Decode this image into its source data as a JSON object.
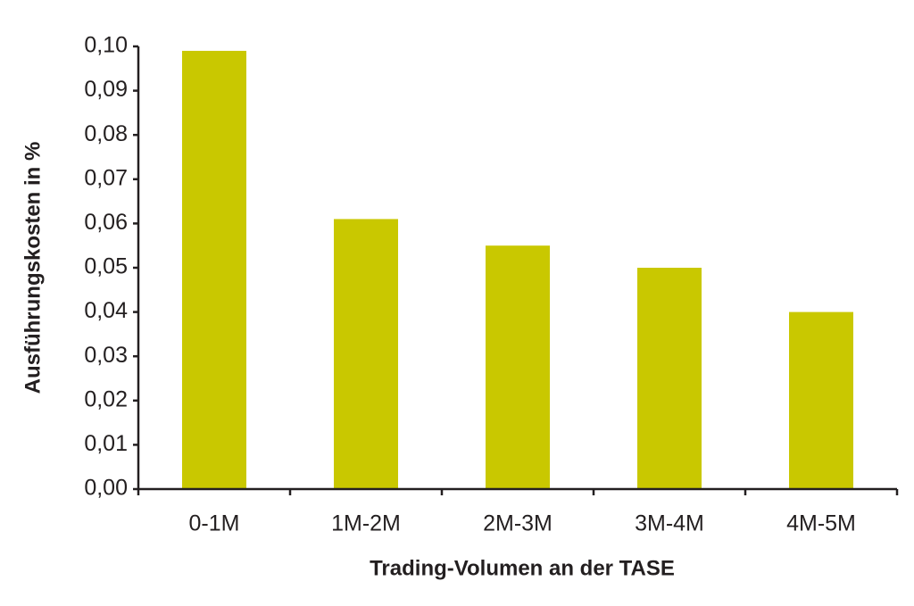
{
  "chart_data": {
    "type": "bar",
    "x_label": "Trading-Volumen an der TASE",
    "y_label": "Ausführungskosten in %",
    "categories": [
      "0-1M",
      "1M-2M",
      "2M-3M",
      "3M-4M",
      "4M-5M"
    ],
    "values": [
      0.099,
      0.061,
      0.055,
      0.05,
      0.04
    ],
    "color": "#c9c800",
    "ylim": [
      0,
      0.1
    ],
    "yticks": [
      {
        "value": 0,
        "label": "0,00"
      },
      {
        "value": 0.01,
        "label": "0,01"
      },
      {
        "value": 0.02,
        "label": "0,02"
      },
      {
        "value": 0.03,
        "label": "0,03"
      },
      {
        "value": 0.04,
        "label": "0,04"
      },
      {
        "value": 0.05,
        "label": "0,05"
      },
      {
        "value": 0.06,
        "label": "0,06"
      },
      {
        "value": 0.07,
        "label": "0,07"
      },
      {
        "value": 0.08,
        "label": "0,08"
      },
      {
        "value": 0.09,
        "label": "0,09"
      },
      {
        "value": 0.1,
        "label": "0,10"
      }
    ],
    "grid": false
  }
}
